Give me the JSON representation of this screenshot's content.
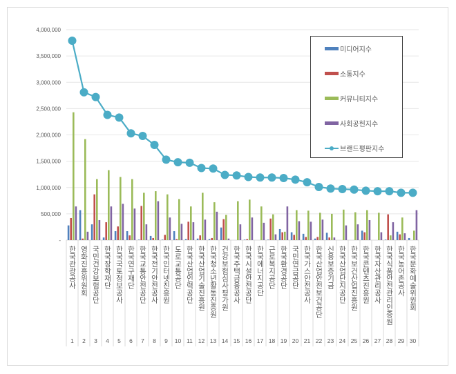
{
  "chart_data": {
    "type": "bar",
    "title": "",
    "xlabel": "",
    "ylabel": "",
    "ylim": [
      0,
      4000000
    ],
    "yticks": [
      "-",
      "500,000",
      "1,000,000",
      "1,500,000",
      "2,000,000",
      "2,500,000",
      "3,000,000",
      "3,500,000",
      "4,000,000"
    ],
    "grid": true,
    "legend_position": "top-right",
    "categories": [
      "한국관광공사",
      "영화진흥위원회",
      "국민건강보험공단",
      "한국장학재단",
      "한국국토정보공사",
      "한국연구재단",
      "한국교통안전공단",
      "한국전기안전공사",
      "한국인터넷진흥원",
      "도로교통공단",
      "한국산업인력공단",
      "한국산업기술진흥원",
      "한국청소년활동진흥원",
      "건강보험심사평가원",
      "한국주택금융공사",
      "한국시설안전공단",
      "한국에너지공단",
      "근로복지공단",
      "한국환경공단",
      "국민연금공단",
      "한국가스안전공사",
      "한국산업안전보건공단",
      "신용보증기금",
      "한국산업단지공단",
      "한국보건산업진흥원",
      "한국콘텐츠진흥원",
      "한국자산관리공사",
      "한국식품안전관리인증원",
      "한국농어촌공사",
      "한국문화예술위원회"
    ],
    "ranks": [
      "1",
      "2",
      "3",
      "4",
      "5",
      "6",
      "7",
      "8",
      "9",
      "10",
      "11",
      "12",
      "13",
      "14",
      "15",
      "16",
      "17",
      "18",
      "19",
      "20",
      "21",
      "22",
      "23",
      "24",
      "25",
      "26",
      "27",
      "28",
      "29",
      "30"
    ],
    "series": [
      {
        "name": "미디어지수",
        "type": "bar",
        "color": "#4f81bd",
        "values": [
          280000,
          570000,
          300000,
          50000,
          170000,
          170000,
          10000,
          80000,
          10000,
          170000,
          20000,
          30000,
          20000,
          240000,
          0,
          10000,
          0,
          10000,
          210000,
          150000,
          120000,
          30000,
          140000,
          0,
          0,
          180000,
          0,
          10000,
          160000,
          40000
        ]
      },
      {
        "name": "소통지수",
        "type": "bar",
        "color": "#c0504d",
        "values": [
          420000,
          30000,
          870000,
          340000,
          260000,
          90000,
          650000,
          40000,
          100000,
          20000,
          350000,
          90000,
          40000,
          400000,
          0,
          20000,
          0,
          410000,
          150000,
          100000,
          60000,
          60000,
          50000,
          0,
          0,
          150000,
          0,
          490000,
          110000,
          0
        ]
      },
      {
        "name": "커뮤니티지수",
        "type": "bar",
        "color": "#9bbb59",
        "values": [
          2430000,
          1920000,
          1160000,
          1330000,
          1200000,
          1160000,
          900000,
          930000,
          870000,
          780000,
          640000,
          900000,
          720000,
          480000,
          740000,
          770000,
          640000,
          490000,
          160000,
          570000,
          560000,
          520000,
          500000,
          580000,
          530000,
          570000,
          520000,
          90000,
          430000,
          180000
        ]
      },
      {
        "name": "사회공헌지수",
        "type": "bar",
        "color": "#8064a2",
        "values": [
          640000,
          160000,
          380000,
          640000,
          690000,
          600000,
          300000,
          740000,
          430000,
          310000,
          340000,
          390000,
          540000,
          30000,
          300000,
          430000,
          330000,
          110000,
          640000,
          360000,
          350000,
          390000,
          50000,
          280000,
          300000,
          380000,
          150000,
          340000,
          130000,
          570000
        ]
      },
      {
        "name": "브랜드평판지수",
        "type": "line",
        "color": "#4bacc6",
        "values": [
          3790000,
          2810000,
          2720000,
          2380000,
          2330000,
          2030000,
          1980000,
          1810000,
          1530000,
          1480000,
          1470000,
          1370000,
          1360000,
          1240000,
          1230000,
          1200000,
          1190000,
          1190000,
          1180000,
          1150000,
          1100000,
          1010000,
          980000,
          970000,
          960000,
          940000,
          930000,
          930000,
          900000,
          900000
        ]
      }
    ]
  }
}
